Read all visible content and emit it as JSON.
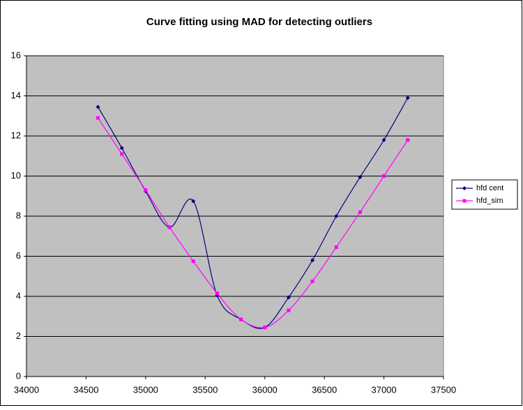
{
  "chart_data": {
    "type": "line",
    "title": "Curve fitting using MAD for detecting outliers",
    "x": [
      34600,
      34800,
      35000,
      35200,
      35400,
      35600,
      35800,
      36000,
      36200,
      36400,
      36600,
      36800,
      37000,
      37200
    ],
    "series": [
      {
        "name": "hfd cent",
        "color": "#000080",
        "marker": "diamond",
        "values": [
          13.45,
          11.4,
          9.25,
          7.45,
          8.75,
          4.05,
          2.85,
          2.45,
          3.95,
          5.8,
          8.0,
          9.95,
          11.8,
          13.9
        ]
      },
      {
        "name": "hfd_sim",
        "color": "#ff00ff",
        "marker": "square",
        "values": [
          12.9,
          11.1,
          9.3,
          7.45,
          5.75,
          4.15,
          2.85,
          2.45,
          3.3,
          4.75,
          6.45,
          8.2,
          10.0,
          11.8
        ]
      }
    ],
    "xlim": [
      34000,
      37500
    ],
    "xticks": [
      34000,
      34500,
      35000,
      35500,
      36000,
      36500,
      37000,
      37500
    ],
    "ylim": [
      0,
      16
    ],
    "yticks": [
      0,
      2,
      4,
      6,
      8,
      10,
      12,
      14,
      16
    ],
    "grid": true,
    "smooth": true,
    "legend": "right"
  }
}
